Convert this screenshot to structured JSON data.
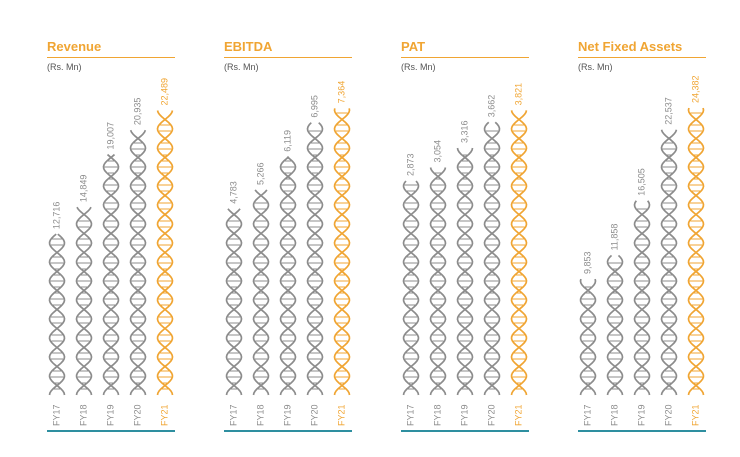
{
  "colors": {
    "accent": "#f0a533",
    "neutral": "#8c8c8c",
    "baseline": "#2e8fa0"
  },
  "chart_data": [
    {
      "type": "bar",
      "title": "Revenue",
      "unit": "(Rs. Mn)",
      "categories": [
        "FY17",
        "FY18",
        "FY19",
        "FY20",
        "FY21"
      ],
      "values": [
        12716,
        14849,
        19007,
        20935,
        22489
      ],
      "value_labels": [
        "12,716",
        "14,849",
        "19,007",
        "20,935",
        "22,489"
      ],
      "highlight": "FY21"
    },
    {
      "type": "bar",
      "title": "EBITDA",
      "unit": "(Rs. Mn)",
      "categories": [
        "FY17",
        "FY18",
        "FY19",
        "FY20",
        "FY21"
      ],
      "values": [
        4783,
        5266,
        6119,
        6995,
        7364
      ],
      "value_labels": [
        "4,783",
        "5,266",
        "6,119",
        "6,995",
        "7,364"
      ],
      "highlight": "FY21"
    },
    {
      "type": "bar",
      "title": "PAT",
      "unit": "(Rs. Mn)",
      "categories": [
        "FY17",
        "FY18",
        "FY19",
        "FY20",
        "FY21"
      ],
      "values": [
        2873,
        3054,
        3316,
        3662,
        3821
      ],
      "value_labels": [
        "2,873",
        "3,054",
        "3,316",
        "3,662",
        "3,821"
      ],
      "highlight": "FY21"
    },
    {
      "type": "bar",
      "title": "Net Fixed Assets",
      "unit": "(Rs. Mn)",
      "categories": [
        "FY17",
        "FY18",
        "FY19",
        "FY20",
        "FY21"
      ],
      "values": [
        9853,
        11858,
        16505,
        22537,
        24382
      ],
      "value_labels": [
        "9,853",
        "11,858",
        "16,505",
        "22,537",
        "24,382"
      ],
      "highlight": "FY21"
    }
  ]
}
